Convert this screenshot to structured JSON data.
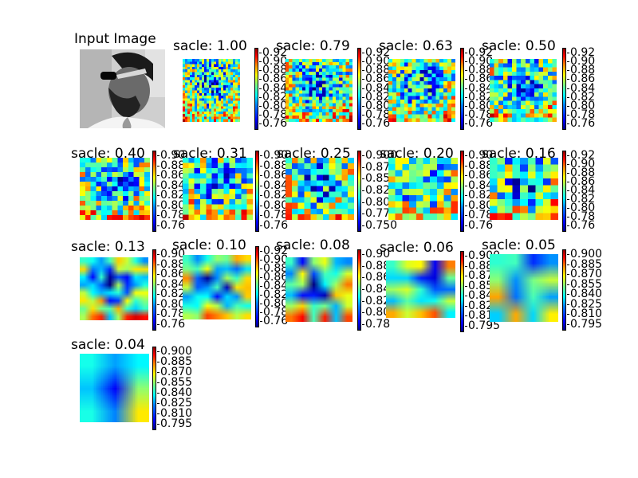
{
  "input": {
    "title": "Input Image"
  },
  "panels": [
    {
      "title": "sacle: 1.00",
      "ticks": [
        "0.92",
        "0.90",
        "0.88",
        "0.86",
        "0.84",
        "0.82",
        "0.80",
        "0.78",
        "0.76"
      ],
      "grid": 24
    },
    {
      "title": "sacle: 0.79",
      "ticks": [
        "0.92",
        "0.90",
        "0.88",
        "0.86",
        "0.84",
        "0.82",
        "0.80",
        "0.78",
        "0.76"
      ],
      "grid": 20
    },
    {
      "title": "sacle: 0.63",
      "ticks": [
        "0.92",
        "0.90",
        "0.88",
        "0.86",
        "0.84",
        "0.82",
        "0.80",
        "0.78",
        "0.76"
      ],
      "grid": 17
    },
    {
      "title": "sacle: 0.50",
      "ticks": [
        "0.92",
        "0.90",
        "0.88",
        "0.86",
        "0.84",
        "0.82",
        "0.80",
        "0.78",
        "0.76"
      ],
      "grid": 15
    },
    {
      "title": "sacle: 0.40",
      "ticks": [
        "0.90",
        "0.88",
        "0.86",
        "0.84",
        "0.82",
        "0.80",
        "0.78",
        "0.76"
      ],
      "grid": 13
    },
    {
      "title": "sacle: 0.31",
      "ticks": [
        "0.90",
        "0.88",
        "0.86",
        "0.84",
        "0.82",
        "0.80",
        "0.78",
        "0.76"
      ],
      "grid": 12
    },
    {
      "title": "sacle: 0.25",
      "ticks": [
        "0.900",
        "0.875",
        "0.850",
        "0.825",
        "0.800",
        "0.775",
        "0.750"
      ],
      "grid": 11
    },
    {
      "title": "sacle: 0.20",
      "ticks": [
        "0.90",
        "0.88",
        "0.86",
        "0.84",
        "0.82",
        "0.80",
        "0.78",
        "0.76"
      ],
      "grid": 10
    },
    {
      "title": "sacle: 0.16",
      "ticks": [
        "0.92",
        "0.90",
        "0.88",
        "0.86",
        "0.84",
        "0.82",
        "0.80",
        "0.78",
        "0.76"
      ],
      "grid": 9
    },
    {
      "title": "sacle: 0.13",
      "ticks": [
        "0.90",
        "0.88",
        "0.86",
        "0.84",
        "0.82",
        "0.80",
        "0.78",
        "0.76"
      ],
      "grid": 8
    },
    {
      "title": "sacle: 0.10",
      "ticks": [
        "0.92",
        "0.90",
        "0.88",
        "0.86",
        "0.84",
        "0.82",
        "0.80",
        "0.78",
        "0.76"
      ],
      "grid": 7
    },
    {
      "title": "sacle: 0.08",
      "ticks": [
        "0.90",
        "0.88",
        "0.86",
        "0.84",
        "0.82",
        "0.80",
        "0.78"
      ],
      "grid": 6
    },
    {
      "title": "sacle: 0.06",
      "ticks": [
        "0.900",
        "0.885",
        "0.870",
        "0.855",
        "0.840",
        "0.825",
        "0.810",
        "0.795"
      ],
      "grid": 5
    },
    {
      "title": "sacle: 0.05",
      "ticks": [
        "0.900",
        "0.885",
        "0.870",
        "0.855",
        "0.840",
        "0.825",
        "0.810",
        "0.795"
      ],
      "grid": 4
    },
    {
      "title": "sacle: 0.04",
      "ticks": [
        "0.900",
        "0.885",
        "0.870",
        "0.855",
        "0.840",
        "0.825",
        "0.810",
        "0.795"
      ],
      "grid": 3
    }
  ]
}
